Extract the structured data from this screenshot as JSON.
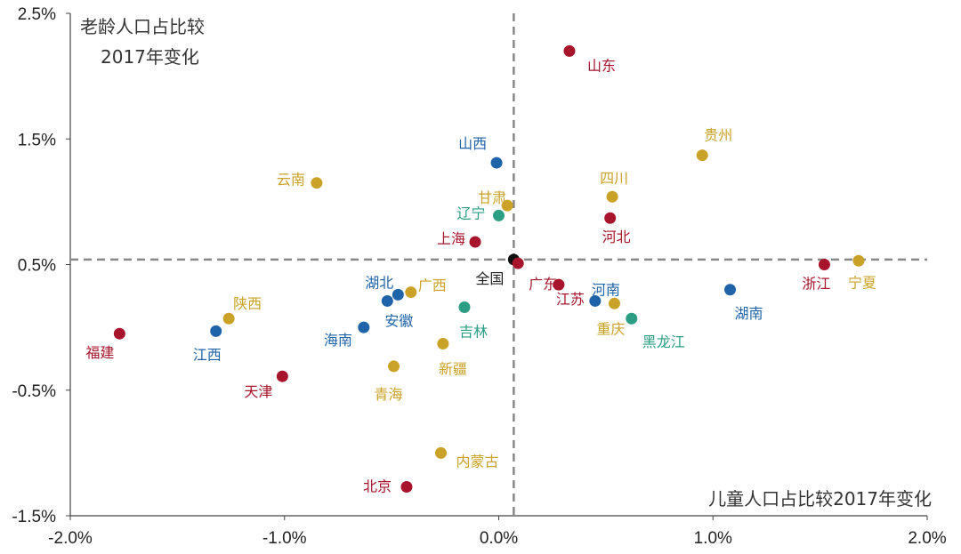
{
  "chart_data": {
    "type": "scatter",
    "title": "",
    "ylabel_text": [
      "老龄人口占比较",
      "2017年变化"
    ],
    "xlabel_text": "儿童人口占比较2017年变化",
    "xlim": [
      -0.02,
      0.02
    ],
    "ylim": [
      -0.015,
      0.025
    ],
    "x_ticks": [
      {
        "value": -0.02,
        "label": "-2.0%"
      },
      {
        "value": -0.01,
        "label": "-1.0%"
      },
      {
        "value": 0.0,
        "label": "0.0%"
      },
      {
        "value": 0.01,
        "label": "1.0%"
      },
      {
        "value": 0.02,
        "label": "2.0%"
      }
    ],
    "y_ticks": [
      {
        "value": 0.025,
        "label": "2.5%"
      },
      {
        "value": 0.015,
        "label": "1.5%"
      },
      {
        "value": 0.005,
        "label": "0.5%"
      },
      {
        "value": -0.005,
        "label": "-0.5%"
      },
      {
        "value": -0.015,
        "label": "-1.5%"
      }
    ],
    "reference_lines": {
      "x": 0.0007,
      "y": 0.0054,
      "style": "dashed",
      "color": "#888888"
    },
    "grid": false,
    "colors": {
      "red": "#a8142b",
      "blue": "#1f63a8",
      "gold": "#c9a227",
      "teal": "#2a9d82",
      "black": "#111111"
    },
    "points": [
      {
        "name": "山东",
        "x": 0.0033,
        "y": 0.022,
        "color": "red"
      },
      {
        "name": "贵州",
        "x": 0.0095,
        "y": 0.0137,
        "color": "gold"
      },
      {
        "name": "山西",
        "x": -0.0001,
        "y": 0.0131,
        "color": "blue"
      },
      {
        "name": "云南",
        "x": -0.0085,
        "y": 0.0115,
        "color": "gold"
      },
      {
        "name": "四川",
        "x": 0.0053,
        "y": 0.0104,
        "color": "gold"
      },
      {
        "name": "甘肃",
        "x": 0.0004,
        "y": 0.0097,
        "color": "gold"
      },
      {
        "name": "辽宁",
        "x": 0.0,
        "y": 0.0089,
        "color": "teal"
      },
      {
        "name": "河北",
        "x": 0.0052,
        "y": 0.0087,
        "color": "red"
      },
      {
        "name": "上海",
        "x": -0.0011,
        "y": 0.0068,
        "color": "red"
      },
      {
        "name": "全国",
        "x": 0.0007,
        "y": 0.0054,
        "color": "black"
      },
      {
        "name": "广东",
        "x": 0.0009,
        "y": 0.0051,
        "color": "red"
      },
      {
        "name": "浙江",
        "x": 0.0152,
        "y": 0.005,
        "color": "red"
      },
      {
        "name": "宁夏",
        "x": 0.0168,
        "y": 0.0053,
        "color": "gold"
      },
      {
        "name": "湖南",
        "x": 0.0108,
        "y": 0.003,
        "color": "blue"
      },
      {
        "name": "江苏",
        "x": 0.0028,
        "y": 0.0034,
        "color": "red"
      },
      {
        "name": "河南",
        "x": 0.0045,
        "y": 0.0021,
        "color": "blue"
      },
      {
        "name": "重庆",
        "x": 0.0054,
        "y": 0.0019,
        "color": "gold"
      },
      {
        "name": "黑龙江",
        "x": 0.0062,
        "y": 0.0007,
        "color": "teal"
      },
      {
        "name": "湖北",
        "x": -0.0052,
        "y": 0.0021,
        "color": "blue"
      },
      {
        "name": "安徽",
        "x": -0.0047,
        "y": 0.0026,
        "color": "blue"
      },
      {
        "name": "广西",
        "x": -0.0041,
        "y": 0.0028,
        "color": "gold"
      },
      {
        "name": "吉林",
        "x": -0.0016,
        "y": 0.0016,
        "color": "teal"
      },
      {
        "name": "海南",
        "x": -0.0063,
        "y": 0.0,
        "color": "blue"
      },
      {
        "name": "陕西",
        "x": -0.0126,
        "y": 0.0007,
        "color": "gold"
      },
      {
        "name": "江西",
        "x": -0.0132,
        "y": -0.0003,
        "color": "blue"
      },
      {
        "name": "福建",
        "x": -0.0177,
        "y": -0.0005,
        "color": "red"
      },
      {
        "name": "新疆",
        "x": -0.0026,
        "y": -0.0013,
        "color": "gold"
      },
      {
        "name": "青海",
        "x": -0.0049,
        "y": -0.0031,
        "color": "gold"
      },
      {
        "name": "天津",
        "x": -0.0101,
        "y": -0.0039,
        "color": "red"
      },
      {
        "name": "内蒙古",
        "x": -0.0027,
        "y": -0.01,
        "color": "gold"
      },
      {
        "name": "北京",
        "x": -0.0043,
        "y": -0.0127,
        "color": "red"
      }
    ]
  }
}
